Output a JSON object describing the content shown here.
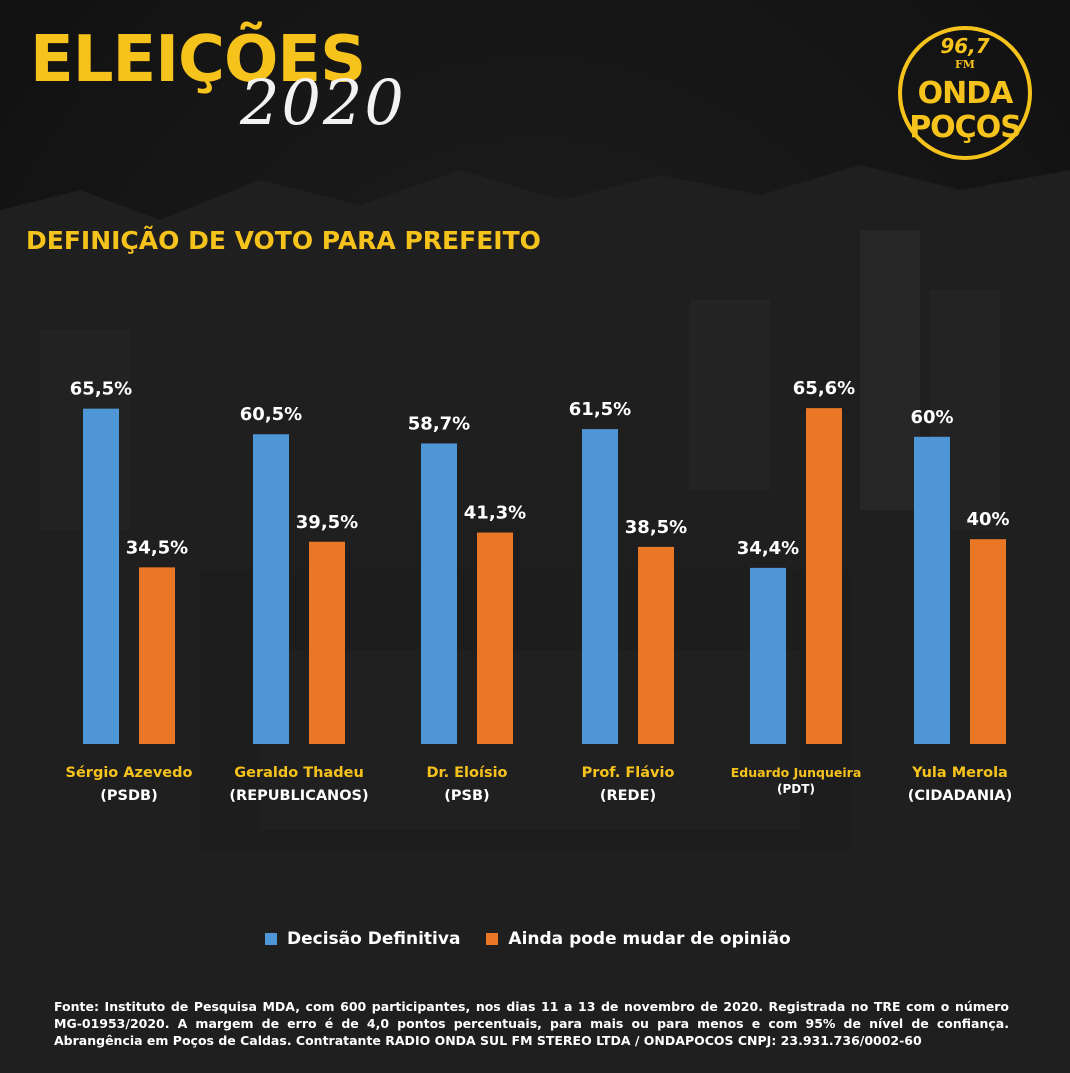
{
  "header": {
    "title": "ELEIÇÕES",
    "year": "2020",
    "logo": {
      "freq": "96,7",
      "band": "FM",
      "line1": "ONDA",
      "line2": "POÇOS"
    }
  },
  "subtitle": "DEFINIÇÃO DE VOTO PARA PREFEITO",
  "colors": {
    "accent": "#f6c21c",
    "series1": "#4f96d6",
    "series2": "#ea7725"
  },
  "chart_data": {
    "type": "bar",
    "title": "DEFINIÇÃO DE VOTO PARA PREFEITO",
    "categories": [
      "Sérgio Azevedo",
      "Geraldo Thadeu",
      "Dr. Eloísio",
      "Prof. Flávio",
      "Eduardo Junqueira",
      "Yula Merola"
    ],
    "parties": [
      "(PSDB)",
      "(REPUBLICANOS)",
      "(PSB)",
      "(REDE)",
      "(PDT)",
      "(CIDADANIA)"
    ],
    "series": [
      {
        "name": "Decisão Definitiva",
        "values": [
          65.5,
          60.5,
          58.7,
          61.5,
          34.4,
          60
        ],
        "labels": [
          "65,5%",
          "60,5%",
          "58,7%",
          "61,5%",
          "34,4%",
          "60%"
        ]
      },
      {
        "name": "Ainda pode mudar de opinião",
        "values": [
          34.5,
          39.5,
          41.3,
          38.5,
          65.6,
          40
        ],
        "labels": [
          "34,5%",
          "39,5%",
          "41,3%",
          "38,5%",
          "65,6%",
          "40%"
        ]
      }
    ],
    "xlabel": "",
    "ylabel": "",
    "grid": false,
    "legend_position": "bottom"
  },
  "legend": {
    "item1": "Decisão Definitiva",
    "item2": "Ainda pode mudar de opinião"
  },
  "footnote": "Fonte: Instituto de Pesquisa MDA, com 600 participantes, nos dias 11 a 13 de novembro de 2020. Registrada no TRE com o número MG-01953/2020. A margem de erro é de 4,0 pontos percentuais, para mais ou para menos e com 95% de nível de confiança. Abrangência em Poços de Caldas. Contratante RADIO ONDA SUL FM STEREO LTDA / ONDAPOCOS CNPJ: 23.931.736/0002-60"
}
